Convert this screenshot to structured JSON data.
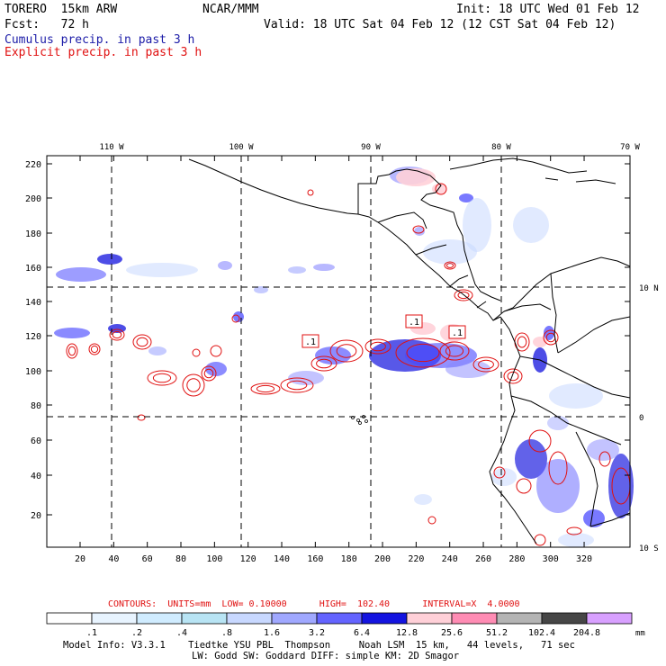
{
  "header": {
    "model": "TORERO  15km ARW",
    "org": "NCAR/MMM",
    "init": "Init: 18 UTC Wed 01 Feb 12",
    "fcst": "Fcst:   72 h",
    "valid": "Valid: 18 UTC Sat 04 Feb 12 (12 CST Sat 04 Feb 12)",
    "legend_cumulus": "Cumulus precip. in past 3 h",
    "legend_explicit": "Explicit precip. in past 3 h"
  },
  "map": {
    "top_lon_labels": [
      "110 W",
      "100 W",
      "90 W",
      "80 W",
      "70 W"
    ],
    "right_lat_labels": [
      "10 N",
      "0",
      "10 S"
    ],
    "y_ticks": [
      "220",
      "200",
      "180",
      "160",
      "140",
      "120",
      "100",
      "80",
      "60",
      "40",
      "20"
    ],
    "x_ticks": [
      "20",
      "40",
      "60",
      "80",
      "100",
      "120",
      "140",
      "160",
      "180",
      "200",
      "220",
      "240",
      "260",
      "280",
      "300",
      "320"
    ],
    "contour_labels": [
      ".1",
      ".1",
      ".1"
    ],
    "colors": {
      "cumulus": "#1c1ca8",
      "explicit": "#e01010",
      "coast": "#000000"
    }
  },
  "colorbar": {
    "contour_info": "CONTOURS:  UNITS=mm  LOW= 0.10000      HIGH=  102.40      INTERVAL=X  4.0000",
    "values": [
      ".1",
      ".2",
      ".4",
      ".8",
      "1.6",
      "3.2",
      "6.4",
      "12.8",
      "25.6",
      "51.2",
      "102.4",
      "204.8"
    ],
    "unit": "mm",
    "colors": [
      "#ffffff",
      "#e8f4ff",
      "#d0ecff",
      "#b8e4f4",
      "#c8d8ff",
      "#a0a8ff",
      "#6464ff",
      "#1414e0",
      "#ffd0d8",
      "#ff8cb4",
      "#b4b4b4",
      "#464646",
      "#d8a0ff"
    ]
  },
  "footer": {
    "line1": "Model Info: V3.3.1    Tiedtke YSU PBL  Thompson     Noah LSM  15 km,   44 levels,   71 sec",
    "line2": "LW: Godd SW: Goddard DIFF: simple KM: 2D Smagor"
  }
}
